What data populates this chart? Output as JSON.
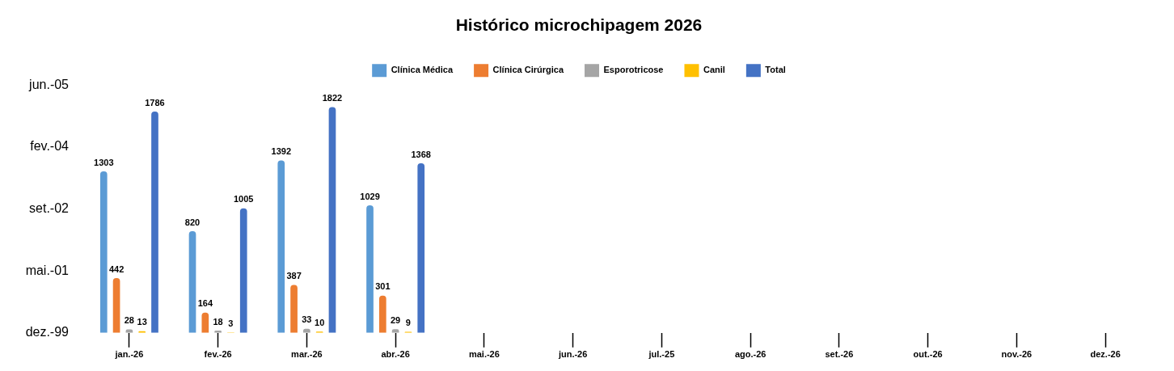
{
  "chart_data": {
    "type": "bar",
    "title": "Histórico microchipagem 2026",
    "categories": [
      "jan.-26",
      "fev.-26",
      "mar.-26",
      "abr.-26",
      "mai.-26",
      "jun.-26",
      "jul.-25",
      "ago.-26",
      "set.-26",
      "out.-26",
      "nov.-26",
      "dez.-26"
    ],
    "series": [
      {
        "name": "Clínica Médica",
        "color": "#5b9bd5",
        "values": [
          1303,
          820,
          1392,
          1029,
          null,
          null,
          null,
          null,
          null,
          null,
          null,
          null
        ]
      },
      {
        "name": "Clínica Cirúrgica",
        "color": "#ed7d31",
        "values": [
          442,
          164,
          387,
          301,
          null,
          null,
          null,
          null,
          null,
          null,
          null,
          null
        ]
      },
      {
        "name": "Esporotricose",
        "color": "#a5a5a5",
        "values": [
          28,
          18,
          33,
          29,
          null,
          null,
          null,
          null,
          null,
          null,
          null,
          null
        ]
      },
      {
        "name": "Canil",
        "color": "#ffc000",
        "values": [
          13,
          3,
          10,
          9,
          null,
          null,
          null,
          null,
          null,
          null,
          null,
          null
        ]
      },
      {
        "name": "Total",
        "color": "#4472c4",
        "values": [
          1786,
          1005,
          1822,
          1368,
          null,
          null,
          null,
          null,
          null,
          null,
          null,
          null
        ]
      }
    ],
    "annotations": [
      "jun.-05",
      "fev.-04",
      "set.-02",
      "mai.-01",
      "dez.-99"
    ],
    "grid": false,
    "legend": "top",
    "data_labels": true
  }
}
